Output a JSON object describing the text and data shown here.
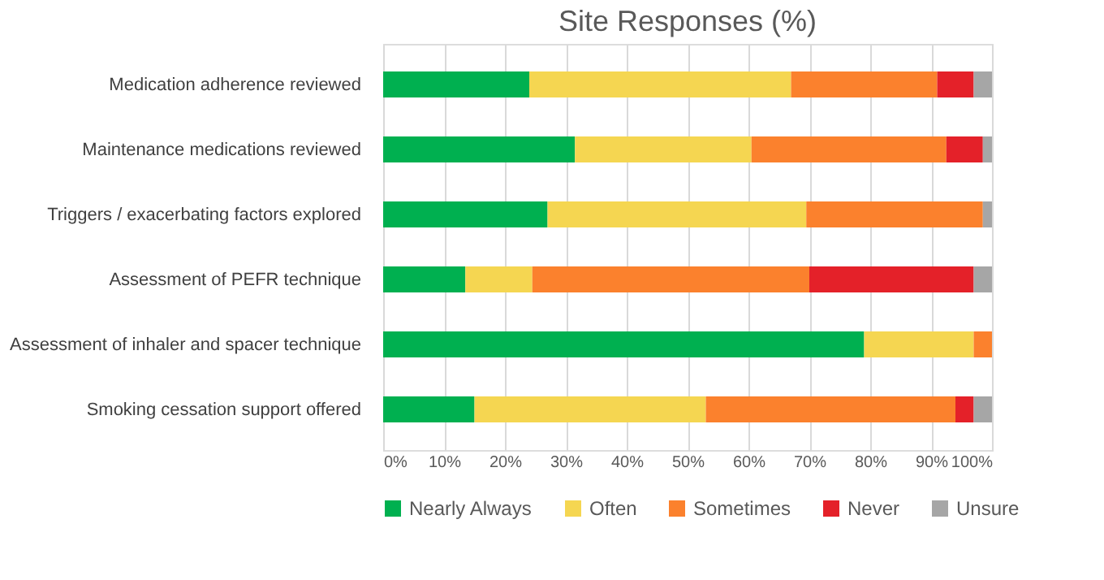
{
  "chart_data": {
    "type": "bar",
    "orientation": "horizontal",
    "stacked": true,
    "title": "Site Responses (%)",
    "categories": [
      "Medication adherence reviewed",
      "Maintenance medications reviewed",
      "Triggers / exacerbating factors explored",
      "Assessment of PEFR technique",
      "Assessment of inhaler and spacer technique",
      "Smoking cessation support offered"
    ],
    "series": [
      {
        "name": "Nearly Always",
        "color": "#00b050",
        "values": [
          24,
          31.5,
          27,
          13.5,
          79,
          15
        ]
      },
      {
        "name": "Often",
        "color": "#f5d651",
        "values": [
          43,
          29,
          42.5,
          11,
          18,
          38
        ]
      },
      {
        "name": "Sometimes",
        "color": "#fb812d",
        "values": [
          24,
          32,
          29,
          45.5,
          3,
          41
        ]
      },
      {
        "name": "Never",
        "color": "#e42129",
        "values": [
          6,
          6,
          0,
          27,
          0,
          3
        ]
      },
      {
        "name": "Unsure",
        "color": "#a6a6a6",
        "values": [
          3,
          1.5,
          1.5,
          3,
          0,
          3
        ]
      }
    ],
    "xlim": [
      0,
      100
    ],
    "xticks": [
      {
        "value": 0,
        "label": "0%"
      },
      {
        "value": 10,
        "label": "10%"
      },
      {
        "value": 20,
        "label": "20%"
      },
      {
        "value": 30,
        "label": "30%"
      },
      {
        "value": 40,
        "label": "40%"
      },
      {
        "value": 50,
        "label": "50%"
      },
      {
        "value": 60,
        "label": "60%"
      },
      {
        "value": 70,
        "label": "70%"
      },
      {
        "value": 80,
        "label": "80%"
      },
      {
        "value": 90,
        "label": "90%"
      },
      {
        "value": 100,
        "label": "100%"
      }
    ],
    "grid": "x",
    "legend": "bottom"
  }
}
